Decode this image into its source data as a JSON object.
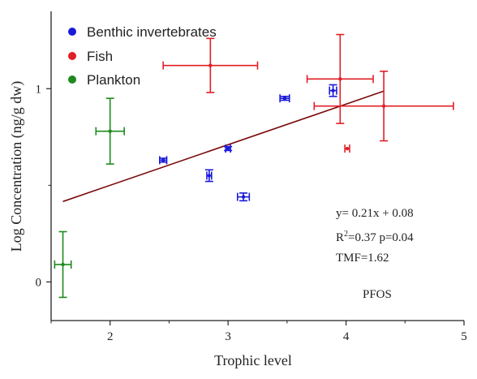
{
  "chart_data": {
    "type": "scatter",
    "xlabel": "Trophic level",
    "ylabel": "Log Concentration (ng/g dw)",
    "xlim": [
      1.5,
      5
    ],
    "ylim": [
      -0.2,
      1.4
    ],
    "x_ticks": [
      "2",
      "3",
      "4",
      "5"
    ],
    "x_tick_values": [
      2,
      3,
      4,
      5
    ],
    "y_ticks": [
      "0",
      "1"
    ],
    "y_tick_values": [
      0,
      1
    ],
    "grid": false,
    "legend_position": "top-left",
    "series": [
      {
        "name": "Benthic invertebrates",
        "color": "#1a1adb",
        "points": [
          {
            "x": 2.45,
            "y": 0.63,
            "xerr": 0.03,
            "yerr": 0.01
          },
          {
            "x": 2.84,
            "y": 0.55,
            "xerr": 0.02,
            "yerr": 0.03
          },
          {
            "x": 3.0,
            "y": 0.69,
            "xerr": 0.02,
            "yerr": 0.01
          },
          {
            "x": 3.13,
            "y": 0.44,
            "xerr": 0.05,
            "yerr": 0.02
          },
          {
            "x": 3.48,
            "y": 0.95,
            "xerr": 0.04,
            "yerr": 0.01
          },
          {
            "x": 3.89,
            "y": 0.99,
            "xerr": 0.03,
            "yerr": 0.03
          }
        ]
      },
      {
        "name": "Fish",
        "color": "#e01f26",
        "points": [
          {
            "x": 2.85,
            "y": 1.12,
            "xerr": 0.4,
            "yerr": 0.14
          },
          {
            "x": 3.95,
            "y": 1.05,
            "xerr": 0.28,
            "yerr": 0.23
          },
          {
            "x": 4.32,
            "y": 0.91,
            "xerr": 0.59,
            "yerr": 0.18
          },
          {
            "x": 4.01,
            "y": 0.69,
            "xerr": 0.02,
            "yerr": 0.0
          }
        ]
      },
      {
        "name": "Plankton",
        "color": "#1e8a1e",
        "points": [
          {
            "x": 2.0,
            "y": 0.78,
            "xerr": 0.12,
            "yerr": 0.17
          },
          {
            "x": 1.6,
            "y": 0.09,
            "xerr": 0.07,
            "yerr": 0.17
          }
        ]
      }
    ],
    "regression": {
      "color": "#7a0a0a",
      "x_start": 1.6,
      "x_end": 4.32,
      "slope": 0.21,
      "intercept": 0.08
    },
    "annotations": {
      "equation": "y= 0.21x + 0.08",
      "r2_prefix": "R",
      "r2_sup": "2",
      "r2_rest": "=0.37 p=0.04",
      "tmf": "TMF=1.62",
      "compound": "PFOS"
    }
  }
}
